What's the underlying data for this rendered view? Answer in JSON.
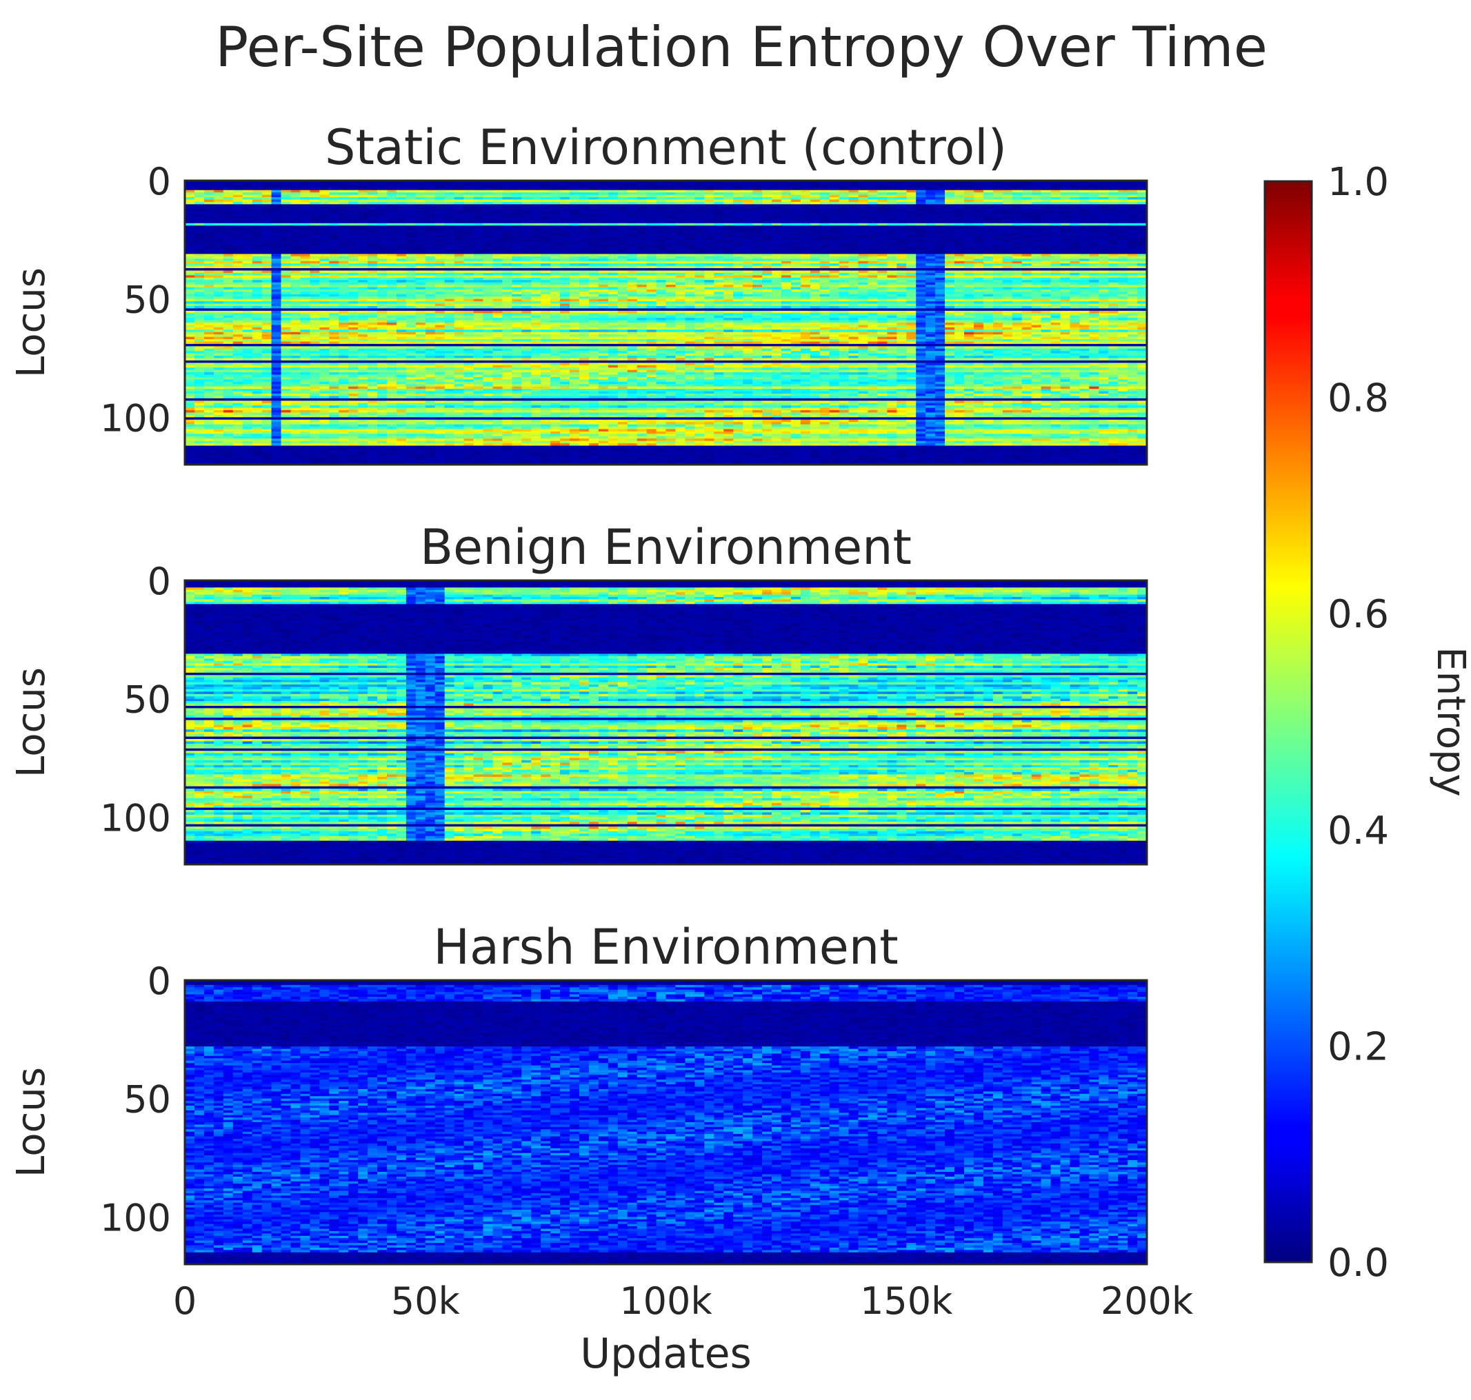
{
  "title": "Per-Site Population Entropy Over Time",
  "colors": {
    "text": "#262626",
    "frame": "#262626",
    "cmap_low": "#00007f",
    "cmap_high": "#7f0000"
  },
  "chart_data": [
    {
      "type": "heatmap",
      "title": "Static Environment (control)",
      "xlabel": "",
      "ylabel": "Locus",
      "xlim": [
        0,
        200000
      ],
      "ylim": [
        120,
        0
      ],
      "yticks": [
        0,
        50,
        100
      ],
      "ytick_labels": [
        "0",
        "50",
        "100"
      ],
      "pattern": {
        "low_rows": [
          [
            0,
            4
          ],
          [
            10,
            31
          ],
          [
            112,
            120
          ]
        ],
        "bright_row": 18,
        "dark_lines": [
          37,
          54,
          69,
          76,
          92,
          100
        ],
        "low_bands": [
          [
            18000,
            20000
          ],
          [
            153000,
            158000
          ]
        ],
        "base_level": 0.45,
        "peak_level": 0.65
      }
    },
    {
      "type": "heatmap",
      "title": "Benign Environment",
      "xlabel": "",
      "ylabel": "Locus",
      "xlim": [
        0,
        200000
      ],
      "ylim": [
        120,
        0
      ],
      "yticks": [
        0,
        50,
        100
      ],
      "ytick_labels": [
        "0",
        "50",
        "100"
      ],
      "pattern": {
        "low_rows": [
          [
            0,
            3
          ],
          [
            10,
            31
          ],
          [
            110,
            120
          ]
        ],
        "dark_lines": [
          39,
          53,
          58,
          66,
          71,
          87,
          96,
          103
        ],
        "low_bands": [
          [
            46000,
            53000
          ]
        ],
        "base_level": 0.38,
        "peak_level": 0.6
      }
    },
    {
      "type": "heatmap",
      "title": "Harsh Environment",
      "xlabel": "Updates",
      "ylabel": "Locus",
      "xlim": [
        0,
        200000
      ],
      "ylim": [
        120,
        0
      ],
      "xticks": [
        0,
        50000,
        100000,
        150000,
        200000
      ],
      "xtick_labels": [
        "0",
        "50k",
        "100k",
        "150k",
        "200k"
      ],
      "yticks": [
        0,
        50,
        100
      ],
      "ytick_labels": [
        "0",
        "50",
        "100"
      ],
      "pattern": {
        "low_rows": [
          [
            0,
            2
          ],
          [
            9,
            28
          ],
          [
            115,
            120
          ]
        ],
        "base_level": 0.1,
        "peak_level": 0.3
      }
    }
  ],
  "colorbar": {
    "label": "Entropy",
    "min": 0.0,
    "max": 1.0,
    "colormap": "jet",
    "ticks": [
      0.0,
      0.2,
      0.4,
      0.6,
      0.8,
      1.0
    ],
    "tick_labels": [
      "0.0",
      "0.2",
      "0.4",
      "0.6",
      "0.8",
      "1.0"
    ]
  }
}
